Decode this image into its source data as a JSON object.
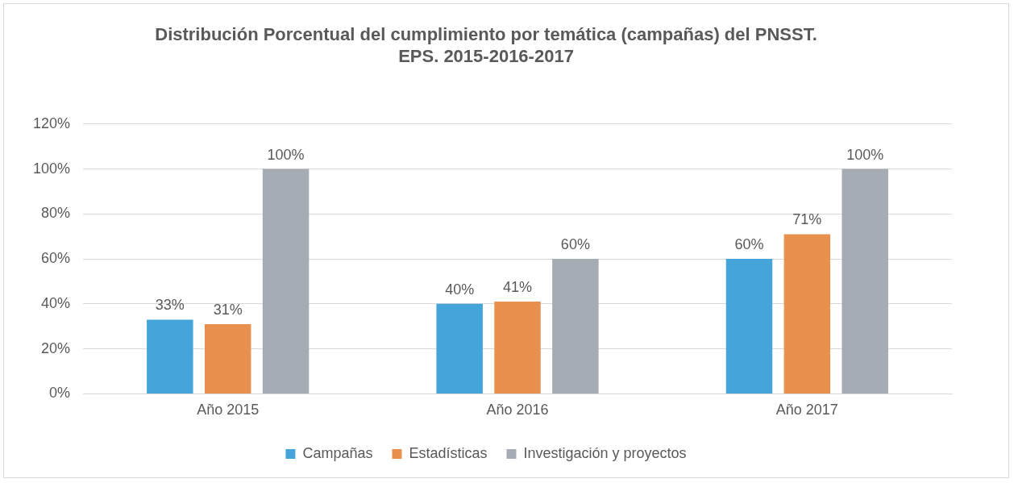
{
  "chart_data": {
    "type": "bar",
    "title": "Distribución Porcentual del cumplimiento por temática (campañas) del PNSST.\nEPS. 2015-2016-2017",
    "categories": [
      "Año 2015",
      "Año 2016",
      "Año 2017"
    ],
    "series": [
      {
        "name": "Campañas",
        "color": "#45a5da",
        "values": [
          33,
          40,
          60
        ],
        "value_labels": [
          "33%",
          "40%",
          "60%"
        ]
      },
      {
        "name": "Estadísticas",
        "color": "#e8914f",
        "values": [
          31,
          41,
          71
        ],
        "value_labels": [
          "31%",
          "41%",
          "71%"
        ]
      },
      {
        "name": "Investigación y proyectos",
        "color": "#a5acb4",
        "values": [
          100,
          60,
          100
        ],
        "value_labels": [
          "100%",
          "60%",
          "100%"
        ]
      }
    ],
    "ylim": [
      0,
      120
    ],
    "yticks": [
      {
        "value": 0,
        "label": "0%"
      },
      {
        "value": 20,
        "label": "20%"
      },
      {
        "value": 40,
        "label": "40%"
      },
      {
        "value": 60,
        "label": "60%"
      },
      {
        "value": 80,
        "label": "80%"
      },
      {
        "value": 100,
        "label": "100%"
      },
      {
        "value": 120,
        "label": "120%"
      }
    ],
    "grid": "y",
    "legend": "bottom"
  }
}
